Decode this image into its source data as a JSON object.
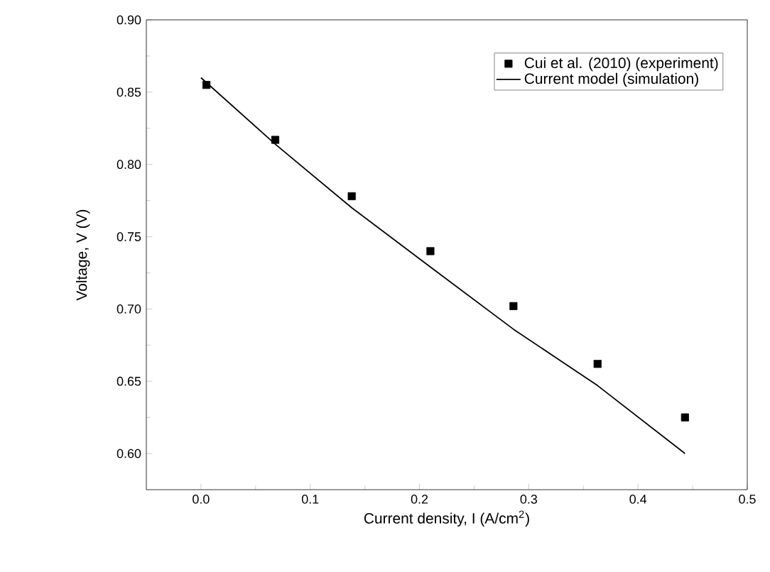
{
  "chart_data": {
    "type": "scatter",
    "xlabel": "Current density, I (A/cm$^{2}$)",
    "ylabel": "Voltage, V (V)",
    "xlim": [
      -0.05,
      0.5
    ],
    "xticks": [
      {
        "value": 0,
        "label": "0.0"
      },
      0.1,
      0.2,
      0.3,
      0.4,
      0.5
    ],
    "ylim": [
      0.575,
      0.9
    ],
    "yticks": [
      {
        "value": 0.6,
        "label": "0.60"
      },
      0.65,
      {
        "value": 0.7,
        "label": "0.70"
      },
      0.75,
      {
        "value": 0.8,
        "label": "0.80"
      },
      0.85,
      {
        "value": 0.9,
        "label": "0.90"
      }
    ],
    "grid": false,
    "legend": "top right",
    "series": [
      {
        "name": "Cui et al. (2010) (experiment)",
        "color": "#000000",
        "marker": "square",
        "x": [
          0.005,
          0.068,
          0.138,
          0.21,
          0.286,
          0.363,
          0.443
        ],
        "values": [
          0.855,
          0.817,
          0.778,
          0.74,
          0.702,
          0.662,
          0.625
        ]
      },
      {
        "name": "Current model (simulation)",
        "type": "line",
        "color": "#000000",
        "line_style": "solid",
        "marker": "none",
        "x": [
          0.0,
          0.068,
          0.138,
          0.21,
          0.286,
          0.363,
          0.443
        ],
        "values": [
          0.86,
          0.814,
          0.77,
          0.729,
          0.686,
          0.647,
          0.6
        ]
      }
    ]
  }
}
